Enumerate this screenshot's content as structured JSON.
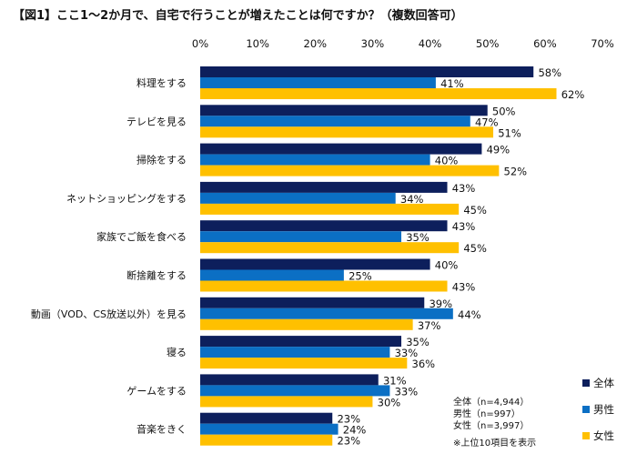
{
  "chart_data": {
    "type": "bar",
    "orientation": "horizontal",
    "title": "【図1】ここ1～2か月で、自宅で行うことが増えたことは何ですか？（複数回答可）",
    "categories": [
      "料理をする",
      "テレビを見る",
      "掃除をする",
      "ネットショッピングをする",
      "家族でご飯を食べる",
      "断捨離をする",
      "動画（VOD、CS放送以外）を見る",
      "寝る",
      "ゲームをする",
      "音楽をきく"
    ],
    "series": [
      {
        "name": "全体",
        "color": "#0d1f5c",
        "values": [
          58,
          50,
          49,
          43,
          43,
          40,
          39,
          35,
          31,
          23
        ]
      },
      {
        "name": "男性",
        "color": "#0b6fc4",
        "values": [
          41,
          47,
          40,
          34,
          35,
          25,
          44,
          33,
          33,
          24
        ]
      },
      {
        "name": "女性",
        "color": "#ffc000",
        "values": [
          62,
          51,
          52,
          45,
          45,
          43,
          37,
          36,
          30,
          23
        ]
      }
    ],
    "xlim": [
      0,
      70
    ],
    "ticks": [
      "0%",
      "10%",
      "20%",
      "30%",
      "40%",
      "50%",
      "60%",
      "70%"
    ],
    "tick_values": [
      0,
      10,
      20,
      30,
      40,
      50,
      60,
      70
    ],
    "value_suffix": "%",
    "grid": false,
    "legend_placement": "bottom-right"
  },
  "notes": [
    "全体（n=4,944）",
    "男性（n=997）",
    "女性（n=3,997）",
    "※上位10項目を表示"
  ]
}
